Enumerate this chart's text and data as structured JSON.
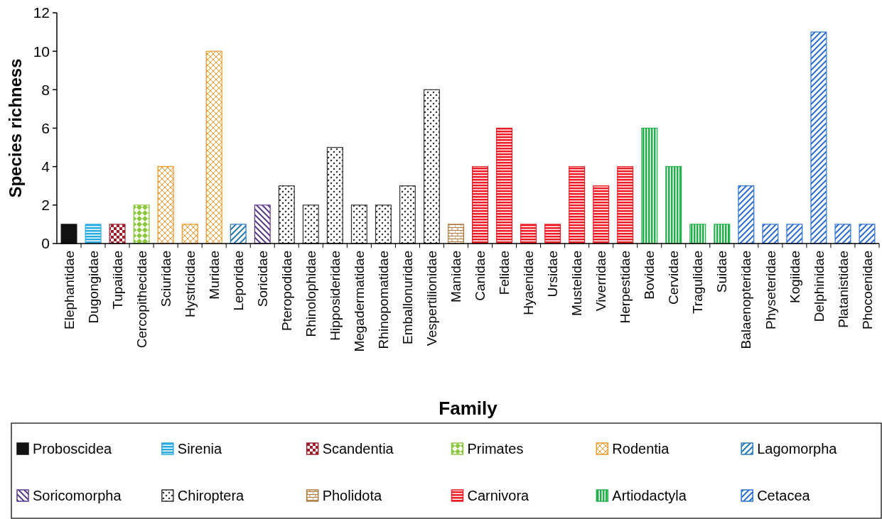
{
  "chart_data": {
    "type": "bar",
    "xlabel": "Family",
    "ylabel": "Species richness",
    "categories": [
      "Elephantidae",
      "Dugongidae",
      "Tupaiidae",
      "Cercopithecidae",
      "Sciuridae",
      "Hystricidae",
      "Muridae",
      "Leporidae",
      "Soricidae",
      "Pteropodidae",
      "Rhinolophidae",
      "Hipposideridae",
      "Megadermatidae",
      "Rhinopomatidae",
      "Emballonuridae",
      "Vespertilionidae",
      "Manidae",
      "Canidae",
      "Felidae",
      "Hyaenidae",
      "Ursidae",
      "Mustelidae",
      "Viverridae",
      "Herpestidae",
      "Bovidae",
      "Cervidae",
      "Tragulidae",
      "Suidae",
      "Balaenopteridae",
      "Physeteridae",
      "Kogiidae",
      "Delphinidae",
      "Platanistidae",
      "Phocoenidae"
    ],
    "series": [
      {
        "name": "Proboscidea",
        "color": "#111111",
        "values": [
          1,
          null,
          null,
          null,
          null,
          null,
          null,
          null,
          null,
          null,
          null,
          null,
          null,
          null,
          null,
          null,
          null,
          null,
          null,
          null,
          null,
          null,
          null,
          null,
          null,
          null,
          null,
          null,
          null,
          null,
          null,
          null,
          null,
          null
        ]
      },
      {
        "name": "Sirenia",
        "color": "#29abe2",
        "values": [
          null,
          1,
          null,
          null,
          null,
          null,
          null,
          null,
          null,
          null,
          null,
          null,
          null,
          null,
          null,
          null,
          null,
          null,
          null,
          null,
          null,
          null,
          null,
          null,
          null,
          null,
          null,
          null,
          null,
          null,
          null,
          null,
          null,
          null
        ]
      },
      {
        "name": "Scandentia",
        "color": "#9e1f2a",
        "values": [
          null,
          null,
          1,
          null,
          null,
          null,
          null,
          null,
          null,
          null,
          null,
          null,
          null,
          null,
          null,
          null,
          null,
          null,
          null,
          null,
          null,
          null,
          null,
          null,
          null,
          null,
          null,
          null,
          null,
          null,
          null,
          null,
          null,
          null
        ]
      },
      {
        "name": "Primates",
        "color": "#8dc63f",
        "values": [
          null,
          null,
          null,
          2,
          null,
          null,
          null,
          null,
          null,
          null,
          null,
          null,
          null,
          null,
          null,
          null,
          null,
          null,
          null,
          null,
          null,
          null,
          null,
          null,
          null,
          null,
          null,
          null,
          null,
          null,
          null,
          null,
          null,
          null
        ]
      },
      {
        "name": "Rodentia",
        "color": "#f7941d",
        "values": [
          null,
          null,
          null,
          null,
          4,
          1,
          10,
          null,
          null,
          null,
          null,
          null,
          null,
          null,
          null,
          null,
          null,
          null,
          null,
          null,
          null,
          null,
          null,
          null,
          null,
          null,
          null,
          null,
          null,
          null,
          null,
          null,
          null,
          null
        ]
      },
      {
        "name": "Lagomorpha",
        "color": "#2a7ab8",
        "values": [
          null,
          null,
          null,
          null,
          null,
          null,
          null,
          1,
          null,
          null,
          null,
          null,
          null,
          null,
          null,
          null,
          null,
          null,
          null,
          null,
          null,
          null,
          null,
          null,
          null,
          null,
          null,
          null,
          null,
          null,
          null,
          null,
          null,
          null
        ]
      },
      {
        "name": "Soricomorpha",
        "color": "#5b3a8c",
        "values": [
          null,
          null,
          null,
          null,
          null,
          null,
          null,
          null,
          2,
          null,
          null,
          null,
          null,
          null,
          null,
          null,
          null,
          null,
          null,
          null,
          null,
          null,
          null,
          null,
          null,
          null,
          null,
          null,
          null,
          null,
          null,
          null,
          null,
          null
        ]
      },
      {
        "name": "Chiroptera",
        "color": "#333333",
        "values": [
          null,
          null,
          null,
          null,
          null,
          null,
          null,
          null,
          null,
          3,
          2,
          5,
          2,
          2,
          3,
          8,
          null,
          null,
          null,
          null,
          null,
          null,
          null,
          null,
          null,
          null,
          null,
          null,
          null,
          null,
          null,
          null,
          null,
          null
        ]
      },
      {
        "name": "Pholidota",
        "color": "#b07a3b",
        "values": [
          null,
          null,
          null,
          null,
          null,
          null,
          null,
          null,
          null,
          null,
          null,
          null,
          null,
          null,
          null,
          null,
          1,
          null,
          null,
          null,
          null,
          null,
          null,
          null,
          null,
          null,
          null,
          null,
          null,
          null,
          null,
          null,
          null,
          null
        ]
      },
      {
        "name": "Carnivora",
        "color": "#ed1c24",
        "values": [
          null,
          null,
          null,
          null,
          null,
          null,
          null,
          null,
          null,
          null,
          null,
          null,
          null,
          null,
          null,
          null,
          null,
          4,
          6,
          1,
          1,
          4,
          3,
          4,
          null,
          null,
          null,
          null,
          null,
          null,
          null,
          null,
          null,
          null
        ]
      },
      {
        "name": "Artiodactyla",
        "color": "#22b04b",
        "values": [
          null,
          null,
          null,
          null,
          null,
          null,
          null,
          null,
          null,
          null,
          null,
          null,
          null,
          null,
          null,
          null,
          null,
          null,
          null,
          null,
          null,
          null,
          null,
          null,
          6,
          4,
          1,
          1,
          null,
          null,
          null,
          null,
          null,
          null
        ]
      },
      {
        "name": "Cetacea",
        "color": "#2e6fcf",
        "values": [
          null,
          null,
          null,
          null,
          null,
          null,
          null,
          null,
          null,
          null,
          null,
          null,
          null,
          null,
          null,
          null,
          null,
          null,
          null,
          null,
          null,
          null,
          null,
          null,
          null,
          null,
          null,
          null,
          3,
          1,
          1,
          11,
          1,
          1
        ]
      }
    ],
    "ylim": [
      0,
      12
    ],
    "yticks": [
      0,
      2,
      4,
      6,
      8,
      10,
      12
    ],
    "legend": "bottom"
  }
}
